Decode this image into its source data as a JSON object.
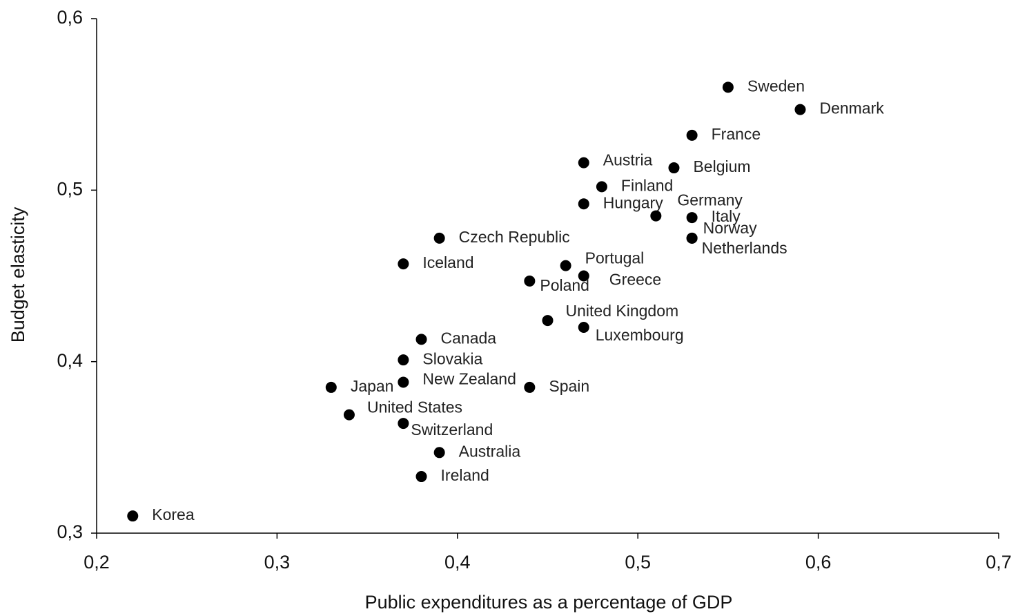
{
  "chart_data": {
    "type": "scatter",
    "x_label": "Public expenditures as a percentage of GDP",
    "y_label": "Budget elasticity",
    "color": "#000000",
    "labels": [
      "Sweden",
      "Denmark",
      "France",
      "Austria",
      "Belgium",
      "Finland",
      "Hungary",
      "Germany",
      "Italy",
      "Norway",
      "Netherlands",
      "Czech Republic",
      "Iceland",
      "Portugal",
      "Greece",
      "Poland",
      "United Kingdom",
      "Luxembourg",
      "Canada",
      "Slovakia",
      "New Zealand",
      "Spain",
      "Japan",
      "United States",
      "Switzerland",
      "Australia",
      "Ireland",
      "Korea"
    ],
    "x": [
      0.55,
      0.59,
      0.53,
      0.47,
      0.52,
      0.48,
      0.47,
      0.51,
      0.53,
      0.53,
      0.53,
      0.39,
      0.37,
      0.46,
      0.47,
      0.44,
      0.45,
      0.47,
      0.38,
      0.37,
      0.37,
      0.44,
      0.33,
      0.34,
      0.37,
      0.39,
      0.38,
      0.22
    ],
    "values": [
      0.56,
      0.547,
      0.532,
      0.516,
      0.513,
      0.502,
      0.492,
      0.485,
      0.484,
      0.472,
      0.472,
      0.472,
      0.457,
      0.456,
      0.45,
      0.447,
      0.424,
      0.42,
      0.413,
      0.401,
      0.388,
      0.385,
      0.385,
      0.369,
      0.364,
      0.347,
      0.333,
      0.31
    ],
    "xlim": [
      0.2,
      0.7
    ],
    "ylim": [
      0.3,
      0.6
    ],
    "xticks": [
      {
        "value": 0.2,
        "label": "0,2"
      },
      {
        "value": 0.3,
        "label": "0,3"
      },
      {
        "value": 0.4,
        "label": "0,4"
      },
      {
        "value": 0.5,
        "label": "0,5"
      },
      {
        "value": 0.6,
        "label": "0,6"
      },
      {
        "value": 0.7,
        "label": "0,7"
      }
    ],
    "yticks": [
      {
        "value": 0.3,
        "label": "0,3"
      },
      {
        "value": 0.4,
        "label": "0,4"
      },
      {
        "value": 0.5,
        "label": "0,5"
      },
      {
        "value": 0.6,
        "label": "0,6"
      }
    ],
    "grid": false
  }
}
